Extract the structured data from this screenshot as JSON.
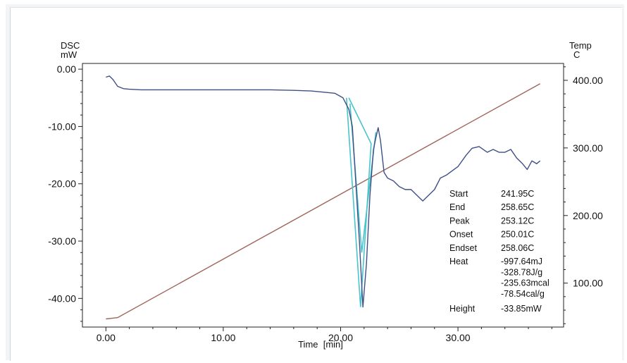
{
  "chart_data": {
    "type": "line",
    "left_axis_label": [
      "DSC",
      "mW"
    ],
    "right_axis_label": [
      "Temp",
      "C"
    ],
    "xlabel": "Time  [min]",
    "xlim": [
      -2,
      39
    ],
    "ylim_left": [
      -45,
      1
    ],
    "ylim_right": [
      35,
      425
    ],
    "x_ticks": [
      "0.00",
      "10.00",
      "20.00",
      "30.00"
    ],
    "left_ticks": [
      "0.00",
      "-10.00",
      "-20.00",
      "-30.00",
      "-40.00"
    ],
    "right_ticks": [
      "400.00",
      "300.00",
      "200.00",
      "100.00"
    ],
    "grid": false,
    "colors": {
      "dsc": "#3f4f86",
      "temp": "#a0645a",
      "analysis": "#48c4cc"
    },
    "series": [
      {
        "axis": "left",
        "x": [
          0.0,
          0.3,
          0.6,
          1.0,
          1.5,
          2.0,
          3.0,
          5.0,
          8.0,
          10.0,
          12.0,
          14.0,
          16.0,
          17.5,
          18.5,
          19.5,
          20.2,
          20.7,
          21.0,
          21.3,
          21.6,
          21.9,
          22.2,
          22.5,
          22.8,
          23.0,
          23.2,
          23.4,
          23.7,
          24.0,
          24.5,
          25.0,
          25.5,
          26.0,
          26.5,
          27.0,
          27.5,
          28.0,
          28.5,
          29.0,
          30.0,
          30.7,
          31.2,
          31.8,
          32.5,
          33.0,
          33.5,
          34.0,
          34.5,
          35.0,
          35.5,
          35.9,
          36.3,
          36.7,
          37.0
        ],
        "y": [
          -1.4,
          -1.2,
          -1.8,
          -3.0,
          -3.4,
          -3.5,
          -3.6,
          -3.6,
          -3.6,
          -3.6,
          -3.6,
          -3.6,
          -3.7,
          -3.8,
          -4.0,
          -4.2,
          -5.0,
          -7.0,
          -10.0,
          -20.0,
          -30.0,
          -41.5,
          -34.0,
          -22.0,
          -14.0,
          -12.0,
          -10.2,
          -12.5,
          -18.0,
          -19.0,
          -19.5,
          -20.5,
          -21.0,
          -21.0,
          -22.0,
          -23.0,
          -22.0,
          -21.0,
          -19.0,
          -18.5,
          -17.0,
          -15.0,
          -13.8,
          -13.5,
          -14.5,
          -14.0,
          -14.5,
          -14.5,
          -14.0,
          -15.5,
          -16.5,
          -17.5,
          -16.0,
          -16.5,
          -16.0
        ]
      },
      {
        "axis": "right",
        "x": [
          0,
          0.5,
          1.0,
          37.0
        ],
        "y": [
          47,
          48,
          49,
          395
        ]
      }
    ],
    "analysis_lines": [
      {
        "x": [
          20.5,
          21.7,
          22.6,
          20.7
        ],
        "y": [
          -5.0,
          -41.5,
          -13.0,
          -5.0
        ]
      },
      {
        "x": [
          20.8,
          21.8,
          23.0
        ],
        "y": [
          -6.0,
          -32.0,
          -11.0
        ]
      }
    ],
    "results": [
      {
        "label": "Start",
        "value": "241.95C"
      },
      {
        "label": "End",
        "value": "258.65C"
      },
      {
        "label": "Peak",
        "value": "253.12C"
      },
      {
        "label": "Onset",
        "value": "250.01C"
      },
      {
        "label": "Endset",
        "value": "258.06C"
      },
      {
        "label": "Heat",
        "value": "-997.64mJ"
      },
      {
        "label": "",
        "value": "-328.78J/g"
      },
      {
        "label": "",
        "value": "-235.63mcal"
      },
      {
        "label": "",
        "value": "-78.54cal/g"
      },
      {
        "label": "Height",
        "value": "-33.85mW"
      }
    ]
  }
}
